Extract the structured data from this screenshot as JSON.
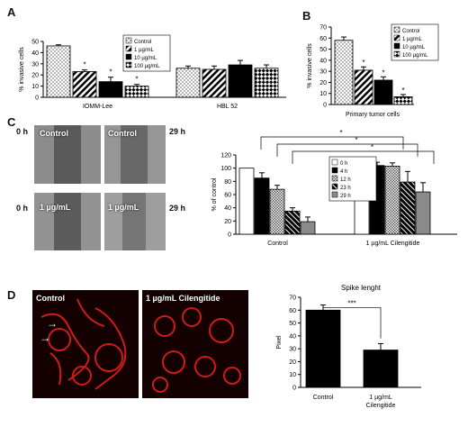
{
  "panels": {
    "a": "A",
    "b": "B",
    "c": "C",
    "d": "D"
  },
  "chart_data": [
    {
      "id": "A",
      "type": "bar",
      "ylabel": "% invasive cells",
      "ylim": [
        0,
        50
      ],
      "yticks": [
        0,
        10,
        20,
        30,
        40,
        50
      ],
      "categories": [
        "IOMM-Lee",
        "HBL 52"
      ],
      "series": [
        {
          "name": "Control",
          "values": [
            46,
            26
          ],
          "errors": [
            1,
            2
          ],
          "pattern": "dots"
        },
        {
          "name": "1 µg/mL",
          "values": [
            23,
            25
          ],
          "errors": [
            1.5,
            3
          ],
          "pattern": "diag"
        },
        {
          "name": "10 µg/mL",
          "values": [
            14,
            29
          ],
          "errors": [
            4,
            4
          ],
          "pattern": "black"
        },
        {
          "name": "100 µg/mL",
          "values": [
            10,
            26
          ],
          "errors": [
            1.5,
            3
          ],
          "pattern": "checker"
        }
      ],
      "annotations": [
        "*",
        "*",
        "*"
      ],
      "legend": "top-right"
    },
    {
      "id": "B",
      "type": "bar",
      "ylabel": "% invasive cells",
      "xlabel": "Primary tumor cells",
      "ylim": [
        0,
        70
      ],
      "yticks": [
        0,
        10,
        20,
        30,
        40,
        50,
        60,
        70
      ],
      "series": [
        {
          "name": "Control",
          "values": [
            58
          ],
          "errors": [
            3
          ],
          "pattern": "dots"
        },
        {
          "name": "1 µg/mL",
          "values": [
            31
          ],
          "errors": [
            3
          ],
          "pattern": "diag"
        },
        {
          "name": "10 µg/mL",
          "values": [
            22
          ],
          "errors": [
            3
          ],
          "pattern": "black"
        },
        {
          "name": "100 µg/mL",
          "values": [
            7
          ],
          "errors": [
            2
          ],
          "pattern": "checker"
        }
      ],
      "annotations": [
        "*",
        "*",
        "*"
      ],
      "legend": "top-right"
    },
    {
      "id": "C",
      "type": "bar",
      "ylabel": "% of control",
      "ylim": [
        0,
        120
      ],
      "yticks": [
        0,
        20,
        40,
        60,
        80,
        100,
        120
      ],
      "categories": [
        "Control",
        "1 µg/mL Cilengitide"
      ],
      "series": [
        {
          "name": "0 h",
          "values": [
            100,
            100
          ],
          "errors": [
            0,
            0
          ],
          "pattern": "white"
        },
        {
          "name": "4 h",
          "values": [
            85,
            104
          ],
          "errors": [
            8,
            5
          ],
          "pattern": "black"
        },
        {
          "name": "12 h",
          "values": [
            68,
            103
          ],
          "errors": [
            6,
            5
          ],
          "pattern": "dense"
        },
        {
          "name": "23 h",
          "values": [
            35,
            79
          ],
          "errors": [
            5,
            16
          ],
          "pattern": "diagblack"
        },
        {
          "name": "29 h",
          "values": [
            19,
            64
          ],
          "errors": [
            7,
            14
          ],
          "pattern": "grey"
        }
      ],
      "annotations": [
        "*",
        "*",
        "*"
      ],
      "legend": "top-left-of-second-group"
    },
    {
      "id": "D",
      "type": "bar",
      "title": "Spike lenght",
      "ylabel": "Pixel",
      "ylim": [
        0,
        70
      ],
      "yticks": [
        0,
        10,
        20,
        30,
        40,
        50,
        60,
        70
      ],
      "categories": [
        "Control",
        "1 µg/mL Cilengitide"
      ],
      "values": [
        60,
        29
      ],
      "errors": [
        4,
        5
      ],
      "annotations": [
        "***"
      ]
    }
  ],
  "micrographs": {
    "c_top_left": "Control",
    "c_top_right": "Control",
    "c_bottom_left": "1 µg/mL",
    "c_bottom_right": "1 µg/mL",
    "c_time_0": "0 h",
    "c_time_29": "29 h",
    "d_left": "Control",
    "d_right": "1 µg/mL Cilengitide"
  },
  "colors": {
    "bar_black": "#000000",
    "bar_grey": "#8a8a8a",
    "fluor_red": "#e0201c"
  }
}
